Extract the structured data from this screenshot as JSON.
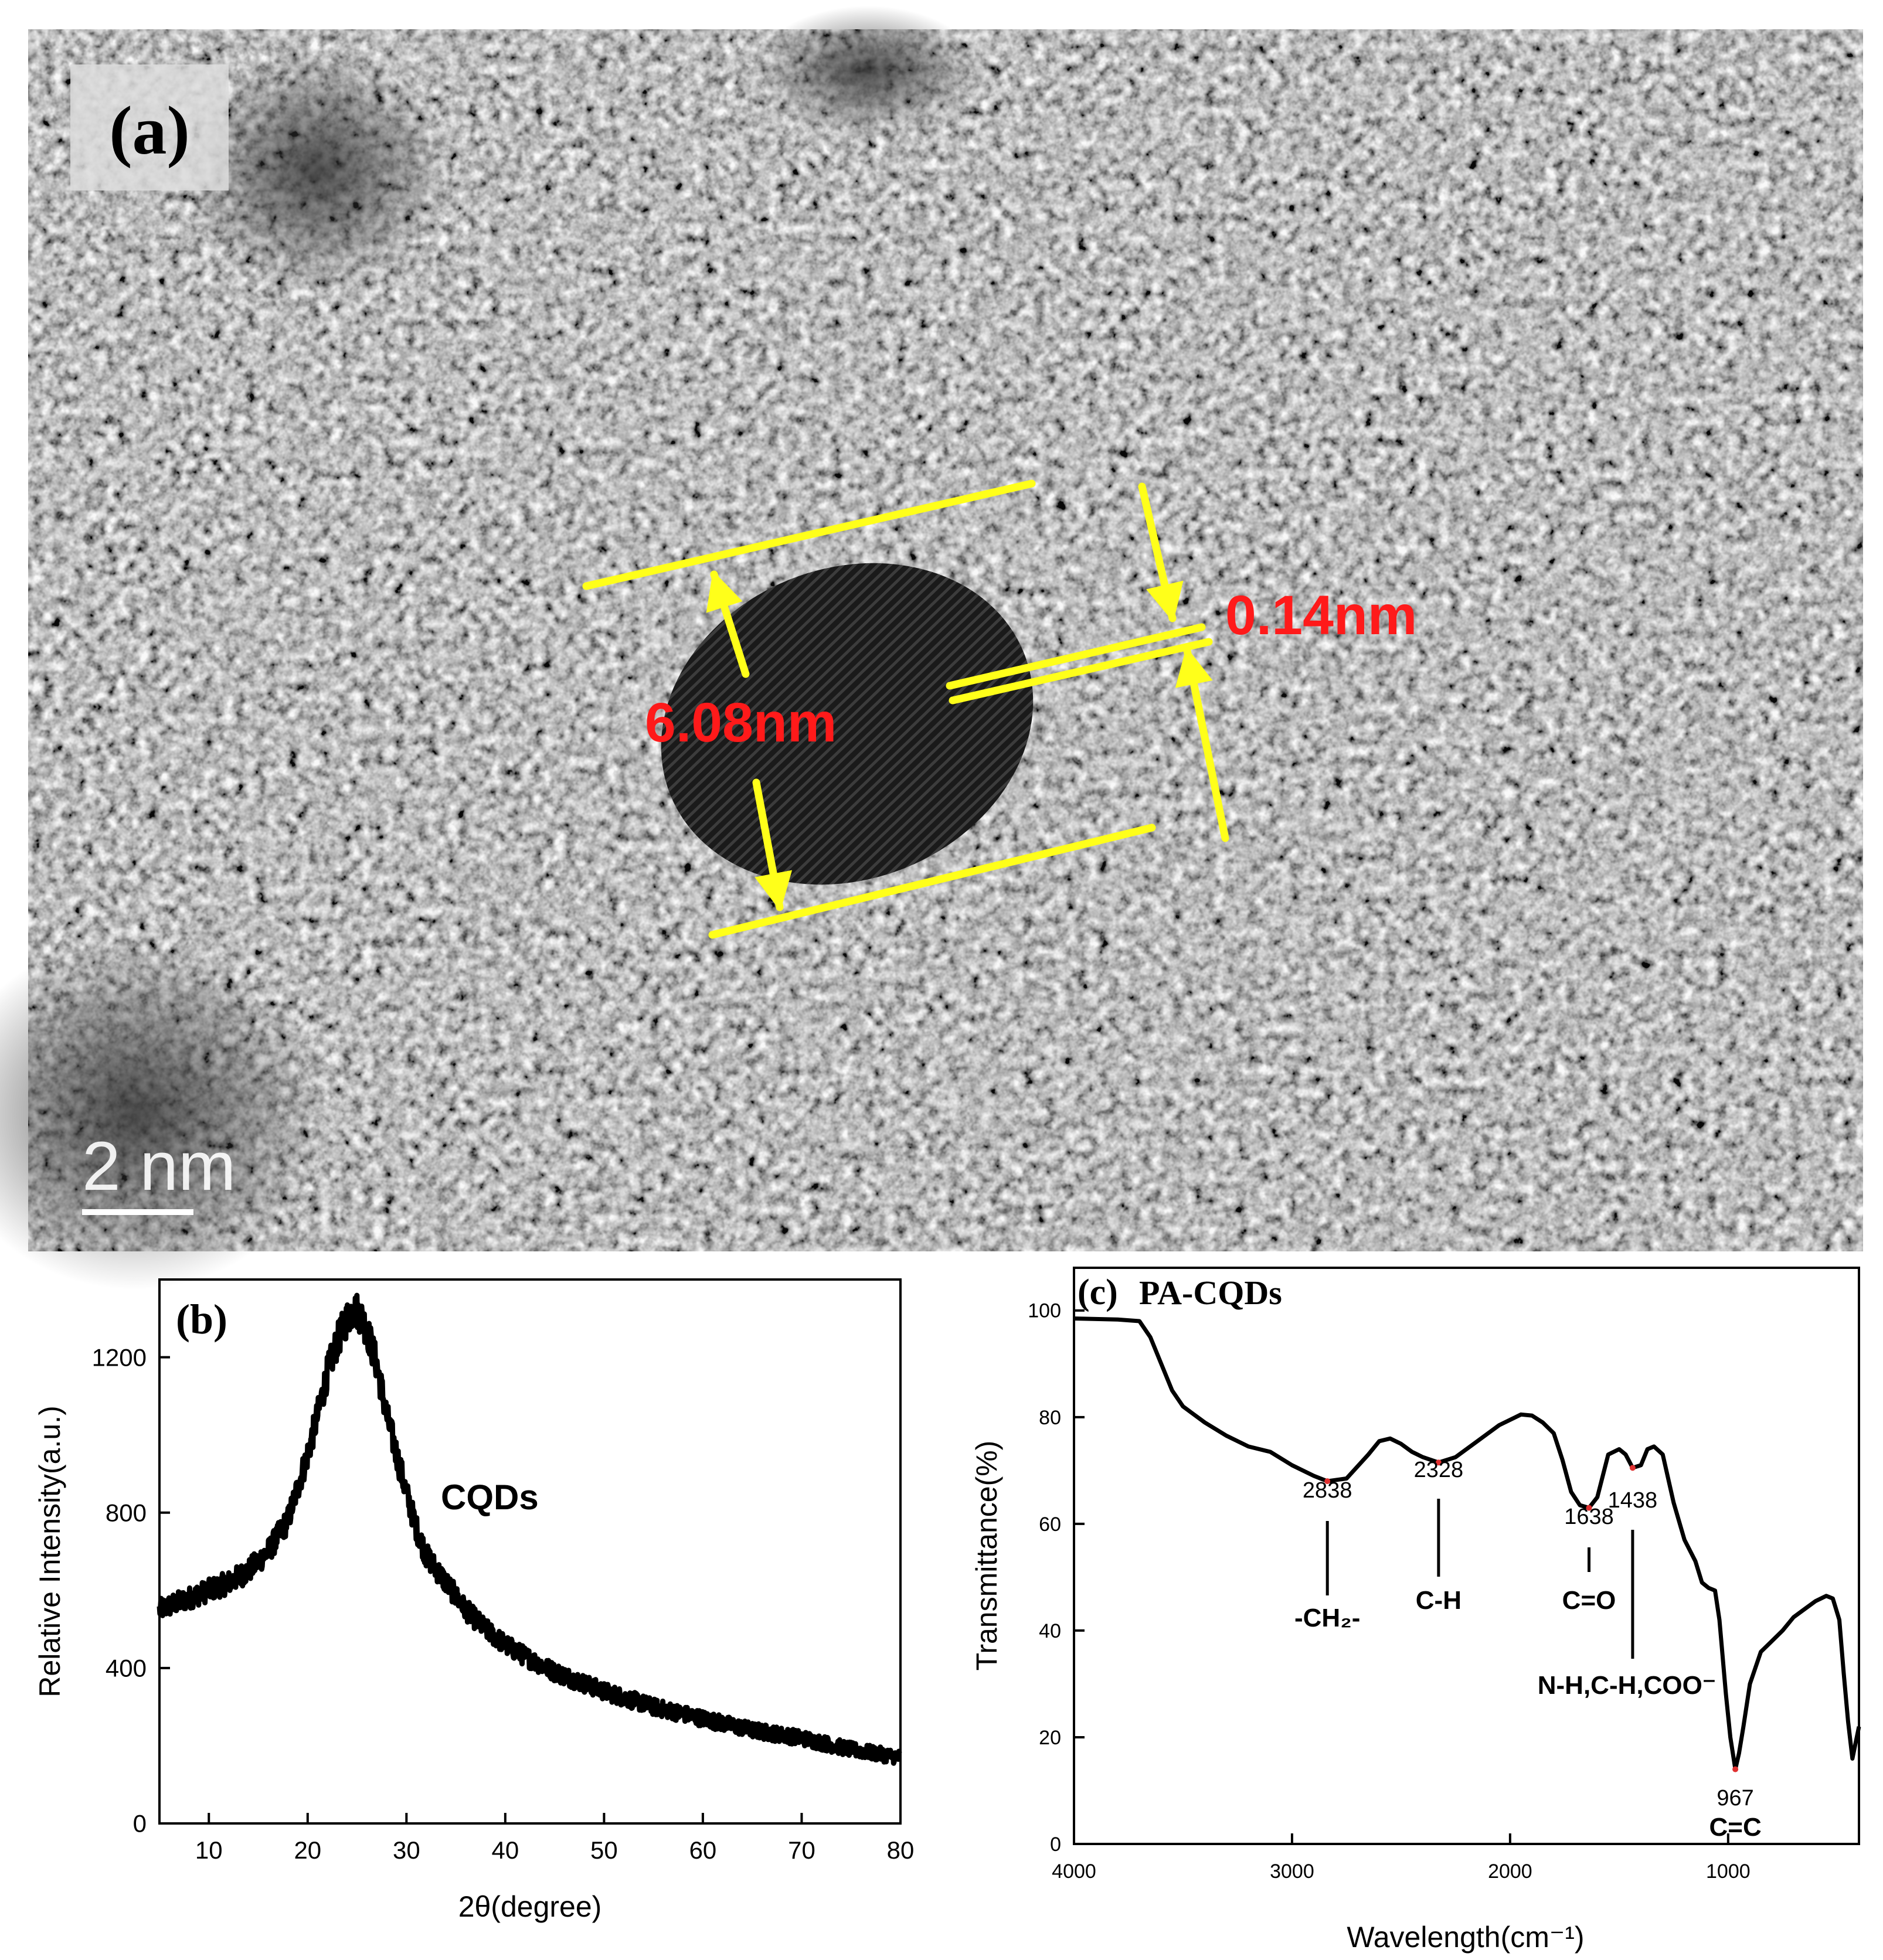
{
  "panel_a": {
    "label": "(a)",
    "diameter_label": "6.08nm",
    "spacing_label": "0.14nm",
    "scale_bar_label": "2 nm",
    "colors": {
      "annotation": "#ffff1a",
      "measure_text": "#ff1a1a",
      "image_background": "#8c8c8c",
      "particle": "#1c1c1c"
    }
  },
  "chart_data": [
    {
      "panel": "(b)",
      "type": "line",
      "xlabel": "2θ(degree)",
      "ylabel": "Relative Intensity(a.u.)",
      "xlim": [
        5,
        80
      ],
      "ylim": [
        0,
        1400
      ],
      "xticks": [
        10,
        20,
        30,
        40,
        50,
        60,
        70,
        80
      ],
      "yticks": [
        0,
        400,
        800,
        1200
      ],
      "annotation": "CQDs",
      "grid": false,
      "series": [
        {
          "x": [
            5,
            8,
            10,
            12,
            14,
            16,
            18,
            20,
            21,
            22,
            23,
            24,
            24.5,
            25,
            25.5,
            26,
            27,
            28,
            29,
            30,
            31,
            32,
            34,
            36,
            38,
            40,
            42,
            45,
            48,
            50,
            55,
            60,
            65,
            70,
            75,
            80
          ],
          "y": [
            550,
            580,
            600,
            620,
            650,
            700,
            780,
            950,
            1050,
            1160,
            1240,
            1300,
            1320,
            1320,
            1300,
            1270,
            1180,
            1050,
            950,
            850,
            760,
            690,
            620,
            550,
            500,
            460,
            430,
            390,
            360,
            340,
            300,
            270,
            240,
            220,
            190,
            170
          ]
        }
      ]
    },
    {
      "panel": "(c)",
      "type": "line",
      "title": "PA-CQDs",
      "xlabel": "Wavelength(cm⁻¹)",
      "ylabel": "Transmittance(%)",
      "xlim": [
        4000,
        400
      ],
      "ylim": [
        0,
        108
      ],
      "xticks": [
        4000,
        3000,
        2000,
        1000
      ],
      "yticks": [
        0,
        20,
        40,
        60,
        80,
        100
      ],
      "grid": false,
      "series": [
        {
          "x": [
            4000,
            3800,
            3700,
            3650,
            3600,
            3550,
            3500,
            3450,
            3400,
            3300,
            3200,
            3100,
            3000,
            2900,
            2838,
            2750,
            2650,
            2600,
            2550,
            2500,
            2450,
            2400,
            2328,
            2250,
            2150,
            2050,
            1950,
            1900,
            1850,
            1800,
            1760,
            1720,
            1680,
            1638,
            1600,
            1550,
            1500,
            1470,
            1438,
            1400,
            1370,
            1340,
            1300,
            1250,
            1200,
            1150,
            1120,
            1090,
            1060,
            1040,
            1010,
            990,
            967,
            950,
            930,
            900,
            850,
            800,
            750,
            700,
            650,
            600,
            550,
            520,
            490,
            470,
            450,
            430,
            400
          ],
          "y": [
            98.5,
            98.3,
            98,
            95,
            90,
            85,
            82,
            80.5,
            79,
            76.5,
            74.5,
            73.5,
            71,
            69,
            68,
            68.5,
            73,
            75.5,
            76,
            75,
            73.5,
            72.5,
            71.5,
            72.5,
            75.5,
            78.5,
            80.5,
            80.3,
            79,
            77,
            72,
            66,
            63.5,
            63,
            65,
            73,
            74,
            73,
            70.5,
            71,
            74,
            74.5,
            73,
            64,
            57,
            53,
            49,
            48,
            47.5,
            42,
            28,
            20,
            14,
            17,
            22,
            30,
            36,
            38,
            40,
            42.5,
            44,
            45.5,
            46.5,
            46,
            42,
            32,
            23,
            16,
            22
          ]
        }
      ],
      "peaks": [
        {
          "x": 2838,
          "label": "2838",
          "group": "-CH₂-"
        },
        {
          "x": 2328,
          "label": "2328",
          "group": "C-H"
        },
        {
          "x": 1638,
          "label": "1638",
          "group": "C=O"
        },
        {
          "x": 1438,
          "label": "1438",
          "group": "N-H,C-H,COO⁻"
        },
        {
          "x": 967,
          "label": "967",
          "group": "C=C"
        }
      ]
    }
  ]
}
